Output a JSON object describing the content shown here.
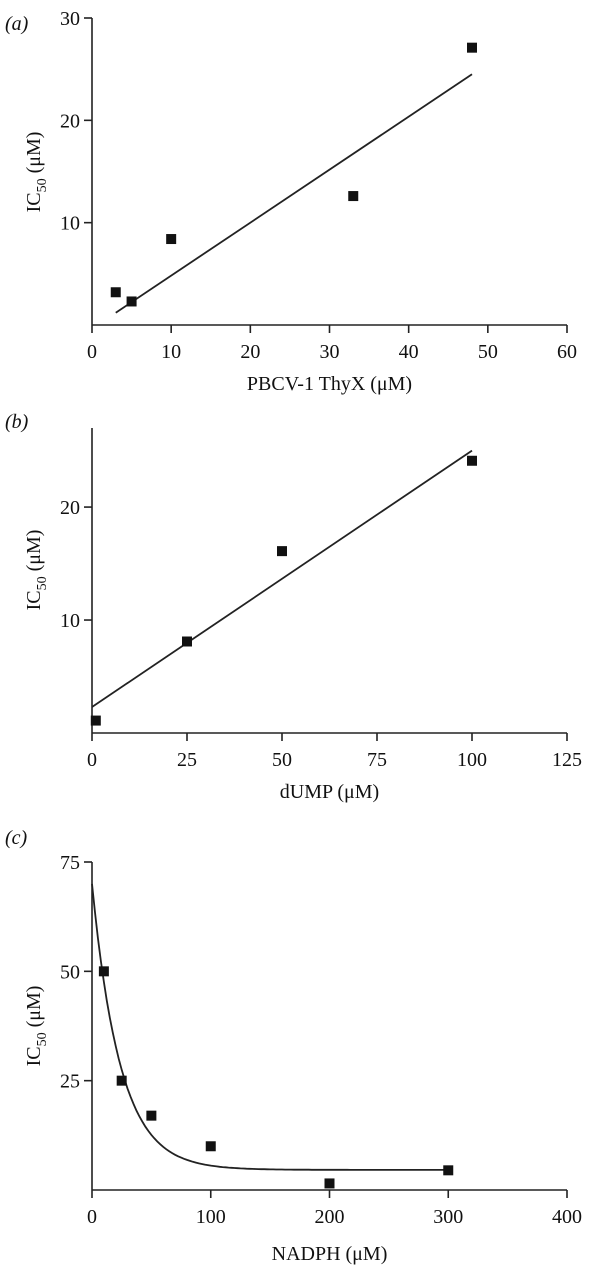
{
  "chart_data": [
    {
      "panel": "(a)",
      "type": "scatter",
      "xlabel": "PBCV-1 ThyX (μM)",
      "ylabel_main": "IC",
      "ylabel_sub": "50",
      "ylabel_unit": " (μM)",
      "xlim": [
        0,
        60
      ],
      "ylim": [
        0,
        30
      ],
      "xticks": [
        0,
        10,
        20,
        30,
        40,
        50,
        60
      ],
      "yticks": [
        10,
        20,
        30
      ],
      "points": [
        {
          "x": 3,
          "y": 3.2
        },
        {
          "x": 5,
          "y": 2.3
        },
        {
          "x": 10,
          "y": 8.4
        },
        {
          "x": 33,
          "y": 12.6
        },
        {
          "x": 48,
          "y": 27.1
        }
      ],
      "fit": {
        "kind": "linear",
        "x": [
          3,
          48
        ],
        "y": [
          1.2,
          24.5
        ]
      }
    },
    {
      "panel": "(b)",
      "type": "scatter",
      "xlabel": "dUMP (μM)",
      "ylabel_main": "IC",
      "ylabel_sub": "50",
      "ylabel_unit": " (μM)",
      "xlim": [
        0,
        125
      ],
      "ylim": [
        0,
        27
      ],
      "xticks": [
        0,
        25,
        50,
        75,
        100,
        125
      ],
      "yticks": [
        10,
        20
      ],
      "points": [
        {
          "x": 1,
          "y": 1.1
        },
        {
          "x": 25,
          "y": 8.1
        },
        {
          "x": 50,
          "y": 16.1
        },
        {
          "x": 100,
          "y": 24.1
        }
      ],
      "fit": {
        "kind": "linear",
        "x": [
          0,
          100
        ],
        "y": [
          2.3,
          25.0
        ]
      }
    },
    {
      "panel": "(c)",
      "type": "scatter",
      "xlabel": "NADPH (μM)",
      "ylabel_main": "IC",
      "ylabel_sub": "50",
      "ylabel_unit": " (μM)",
      "xlim": [
        0,
        400
      ],
      "ylim": [
        0,
        75
      ],
      "xticks": [
        0,
        100,
        200,
        300,
        400
      ],
      "yticks": [
        25,
        50,
        75
      ],
      "points": [
        {
          "x": 10,
          "y": 50
        },
        {
          "x": 25,
          "y": 25
        },
        {
          "x": 50,
          "y": 17
        },
        {
          "x": 100,
          "y": 10
        },
        {
          "x": 200,
          "y": 1.5
        },
        {
          "x": 300,
          "y": 4.5
        }
      ],
      "fit": {
        "kind": "exponential-decay",
        "y0": 70,
        "plateau": 4.6,
        "k": 0.042,
        "x_end": 300
      }
    }
  ]
}
